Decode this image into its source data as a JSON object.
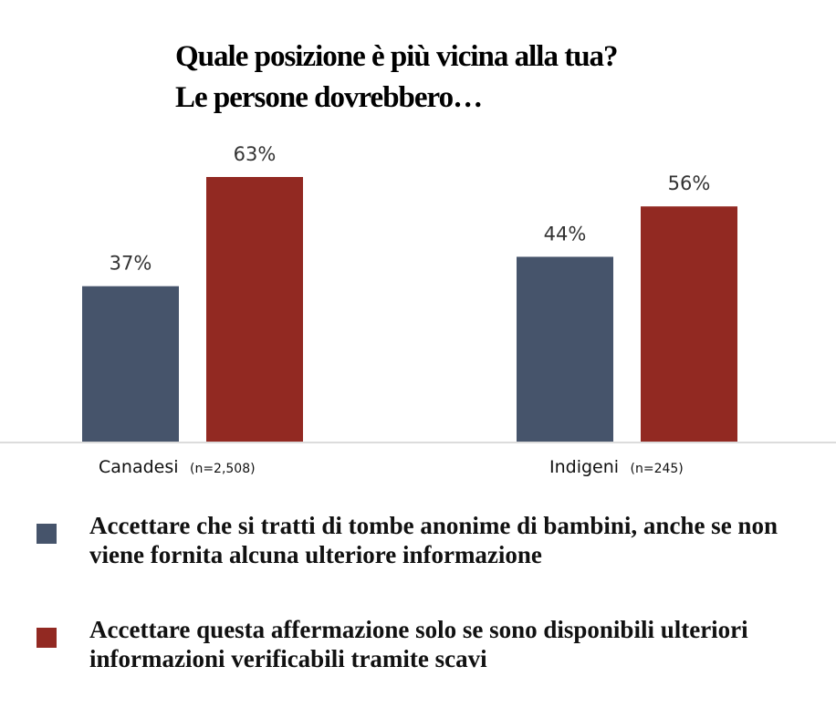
{
  "chart_data": {
    "type": "bar",
    "title": [
      "Quale posizione è più vicina alla tua?",
      "Le persone dovrebbero…"
    ],
    "categories": [
      "Canadesi",
      "Indigeni"
    ],
    "category_notes": [
      "(n=2,508)",
      "(n=245)"
    ],
    "series": [
      {
        "name": "Accettare che si tratti di tombe anonime di bambini, anche se non viene fornita alcuna ulteriore informazione",
        "color": "#46546b",
        "values": [
          37,
          44
        ],
        "labels": [
          "37%",
          "44%"
        ]
      },
      {
        "name": "Accettare questa affermazione solo se sono disponibili ulteriori informazioni verificabili tramite scavi",
        "color": "#922922",
        "values": [
          63,
          56
        ],
        "labels": [
          "63%",
          "56%"
        ]
      }
    ],
    "ylim": [
      0,
      63
    ],
    "xlabel": "",
    "ylabel": "",
    "grid": false,
    "legend_placement": "bottom"
  }
}
